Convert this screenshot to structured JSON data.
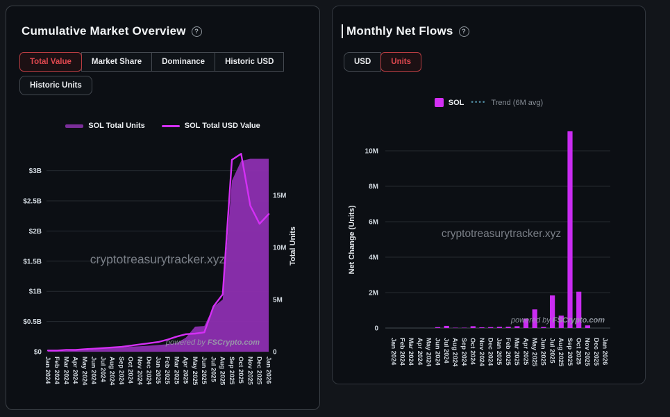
{
  "left_panel": {
    "title": "Cumulative Market Overview",
    "help": "?",
    "tabs": [
      {
        "label": "Total Value",
        "active": true
      },
      {
        "label": "Market Share",
        "active": false
      },
      {
        "label": "Dominance",
        "active": false
      },
      {
        "label": "Historic USD",
        "active": false
      },
      {
        "label": "Historic Units",
        "active": false
      }
    ],
    "legend": [
      {
        "label": "SOL Total Units",
        "color": "#7b2e99"
      },
      {
        "label": "SOL Total USD Value",
        "color": "#d42ff5"
      }
    ],
    "watermark": "cryptotreasurytracker.xyz",
    "powered_by_prefix": "powered by ",
    "powered_by_brand": "FSCrypto.com"
  },
  "right_panel": {
    "title": "Monthly Net Flows",
    "help": "?",
    "tabs": [
      {
        "label": "USD",
        "active": false
      },
      {
        "label": "Units",
        "active": true
      }
    ],
    "legend_sol": "SOL",
    "trend_dots": "••••",
    "legend_trend": "Trend (6M avg)",
    "legend_sol_color": "#d42ff5",
    "trend_color": "#4a8196",
    "watermark": "cryptotreasurytracker.xyz",
    "powered_by_prefix": "powered by ",
    "powered_by_brand": "FSCrypto.com"
  },
  "chart_data": [
    {
      "type": "area",
      "title": "Cumulative Market Overview - Total Value",
      "categories": [
        "Jan 2024",
        "Feb 2024",
        "Mar 2024",
        "Apr 2024",
        "May 2024",
        "Jun 2024",
        "Jul 2024",
        "Aug 2024",
        "Sep 2024",
        "Oct 2024",
        "Nov 2024",
        "Dec 2024",
        "Jan 2025",
        "Feb 2025",
        "Mar 2025",
        "Apr 2025",
        "May 2025",
        "Jun 2025",
        "Jul 2025",
        "Aug 2025",
        "Sep 2025",
        "Oct 2025",
        "Nov 2025",
        "Dec 2025",
        "Jan 2026"
      ],
      "series": [
        {
          "name": "SOL Total Units",
          "type": "area",
          "y_axis": "right",
          "color": "#8d2fb0",
          "values": [
            0.03,
            0.05,
            0.08,
            0.11,
            0.15,
            0.22,
            0.34,
            0.36,
            0.38,
            0.48,
            0.52,
            0.57,
            0.64,
            0.72,
            0.82,
            1.35,
            2.4,
            2.46,
            4.3,
            5.0,
            16.4,
            18.3,
            18.5,
            18.5,
            18.5
          ]
        },
        {
          "name": "SOL Total USD Value",
          "type": "line",
          "y_axis": "left",
          "color": "#d42ff5",
          "values": [
            0.02,
            0.02,
            0.03,
            0.03,
            0.04,
            0.05,
            0.06,
            0.07,
            0.08,
            0.1,
            0.12,
            0.14,
            0.16,
            0.2,
            0.25,
            0.29,
            0.3,
            0.32,
            0.75,
            0.95,
            3.18,
            3.28,
            2.42,
            2.12,
            2.28
          ]
        }
      ],
      "left_axis": {
        "unit": "USD billions",
        "max": 3.35,
        "ticks": [
          {
            "v": 0,
            "label": "$0"
          },
          {
            "v": 0.5,
            "label": "$0.5B"
          },
          {
            "v": 1,
            "label": "$1B"
          },
          {
            "v": 1.5,
            "label": "$1.5B"
          },
          {
            "v": 2,
            "label": "$2B"
          },
          {
            "v": 2.5,
            "label": "$2.5B"
          },
          {
            "v": 3,
            "label": "$3B"
          }
        ]
      },
      "right_axis": {
        "label": "Total Units",
        "unit": "millions",
        "max": 19.3,
        "ticks": [
          {
            "v": 0,
            "label": "0"
          },
          {
            "v": 5,
            "label": "5M"
          },
          {
            "v": 10,
            "label": "10M"
          },
          {
            "v": 15,
            "label": "15M"
          }
        ]
      },
      "grid": true
    },
    {
      "type": "bar",
      "title": "Monthly Net Flows - Units",
      "ylabel": "Net Change (Units)",
      "categories": [
        "Jan 2024",
        "Feb 2024",
        "Mar 2024",
        "Apr 2024",
        "May 2024",
        "Jun 2024",
        "Jul 2024",
        "Aug 2024",
        "Sep 2024",
        "Oct 2024",
        "Nov 2024",
        "Dec 2024",
        "Jan 2025",
        "Feb 2025",
        "Mar 2025",
        "Apr 2025",
        "May 2025",
        "Jun 2025",
        "Jul 2025",
        "Aug 2025",
        "Sep 2025",
        "Oct 2025",
        "Nov 2025",
        "Dec 2025",
        "Jan 2026"
      ],
      "series": [
        {
          "name": "SOL",
          "color": "#ca2cf2",
          "values": [
            0,
            0,
            0,
            0,
            0,
            0.05,
            0.12,
            0.02,
            0.02,
            0.1,
            0.04,
            0.05,
            0.07,
            0.08,
            0.1,
            0.53,
            1.05,
            0.06,
            1.84,
            0.7,
            11.1,
            2.05,
            0.15,
            0,
            0
          ]
        }
      ],
      "trend": {
        "name": "Trend (6M avg)",
        "style": "dotted",
        "color": "#4a8196"
      },
      "y_axis": {
        "unit": "millions",
        "max": 11.3,
        "ticks": [
          {
            "v": 0,
            "label": "0"
          },
          {
            "v": 2,
            "label": "2M"
          },
          {
            "v": 4,
            "label": "4M"
          },
          {
            "v": 6,
            "label": "6M"
          },
          {
            "v": 8,
            "label": "8M"
          },
          {
            "v": 10,
            "label": "10M"
          }
        ]
      },
      "grid": true
    }
  ],
  "colors": {
    "background": "#12151a",
    "panel": "#0c0f14",
    "grid": "#262b31",
    "tick_text": "#d0d7de",
    "accent_red": "#e0484f",
    "watermark": "#8d929b",
    "area_fill": "#8d2fb0",
    "line_magenta": "#d42ff5",
    "bar_magenta": "#ca2cf2"
  }
}
